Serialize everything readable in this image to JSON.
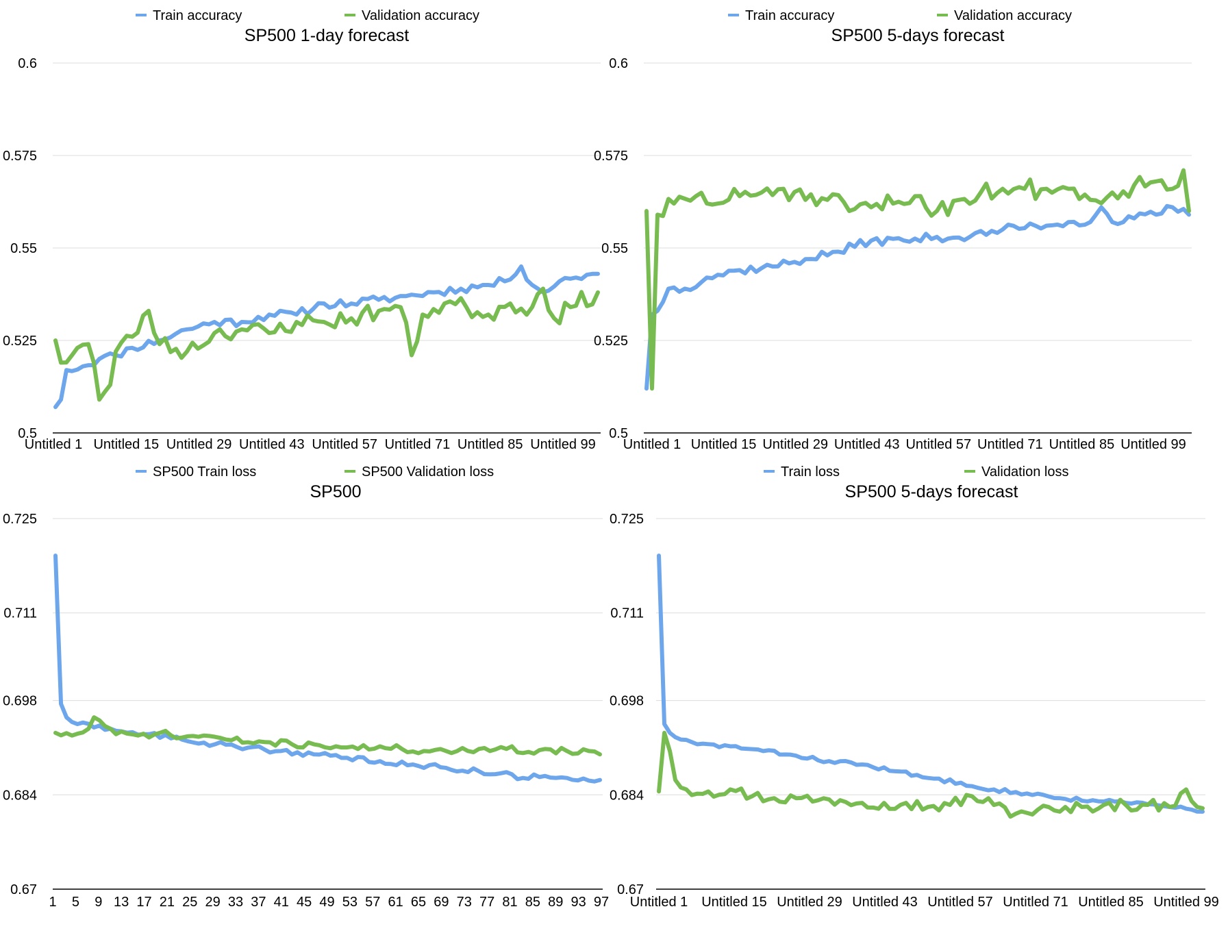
{
  "chart_data": [
    {
      "type": "line",
      "title": "SP500 1-day forecast",
      "legend_position": "top",
      "grid": true,
      "ylim": [
        0.5,
        0.6
      ],
      "yticks": [
        "0.5",
        "0.525",
        "0.55",
        "0.575",
        "0.6"
      ],
      "xtick_labels": [
        "Untitled 1",
        "Untitled 15",
        "Untitled 29",
        "Untitled 43",
        "Untitled 57",
        "Untitled 71",
        "Untitled 85",
        "Untitled 99"
      ],
      "x_count": 100,
      "series": [
        {
          "name": "Train accuracy",
          "color": "#6ea6ec",
          "keypoints": [
            [
              1,
              0.507
            ],
            [
              2,
              0.509
            ],
            [
              3,
              0.517
            ],
            [
              6,
              0.518
            ],
            [
              9,
              0.52
            ],
            [
              12,
              0.521
            ],
            [
              15,
              0.523
            ],
            [
              20,
              0.525
            ],
            [
              25,
              0.528
            ],
            [
              30,
              0.53
            ],
            [
              35,
              0.53
            ],
            [
              40,
              0.532
            ],
            [
              45,
              0.532
            ],
            [
              50,
              0.535
            ],
            [
              55,
              0.535
            ],
            [
              60,
              0.536
            ],
            [
              65,
              0.537
            ],
            [
              70,
              0.538
            ],
            [
              75,
              0.539
            ],
            [
              80,
              0.54
            ],
            [
              83,
              0.541
            ],
            [
              86,
              0.545
            ],
            [
              88,
              0.54
            ],
            [
              90,
              0.538
            ],
            [
              93,
              0.541
            ],
            [
              96,
              0.542
            ],
            [
              99,
              0.543
            ],
            [
              100,
              0.543
            ]
          ],
          "noise": 0.0012,
          "seed": 11
        },
        {
          "name": "Validation accuracy",
          "color": "#78bb50",
          "keypoints": [
            [
              1,
              0.525
            ],
            [
              2,
              0.519
            ],
            [
              5,
              0.523
            ],
            [
              7,
              0.524
            ],
            [
              8,
              0.519
            ],
            [
              9,
              0.509
            ],
            [
              11,
              0.513
            ],
            [
              12,
              0.522
            ],
            [
              15,
              0.526
            ],
            [
              18,
              0.533
            ],
            [
              20,
              0.524
            ],
            [
              25,
              0.522
            ],
            [
              30,
              0.527
            ],
            [
              35,
              0.528
            ],
            [
              40,
              0.527
            ],
            [
              45,
              0.53
            ],
            [
              50,
              0.53
            ],
            [
              55,
              0.531
            ],
            [
              60,
              0.533
            ],
            [
              64,
              0.534
            ],
            [
              66,
              0.521
            ],
            [
              68,
              0.532
            ],
            [
              72,
              0.535
            ],
            [
              76,
              0.534
            ],
            [
              80,
              0.532
            ],
            [
              84,
              0.535
            ],
            [
              88,
              0.534
            ],
            [
              90,
              0.539
            ],
            [
              92,
              0.531
            ],
            [
              95,
              0.534
            ],
            [
              100,
              0.538
            ]
          ],
          "noise": 0.0025,
          "seed": 23
        }
      ]
    },
    {
      "type": "line",
      "title": "SP500 5-days forecast",
      "legend_position": "top",
      "grid": true,
      "ylim": [
        0.5,
        0.6
      ],
      "yticks": [
        "0.5",
        "0.525",
        "0.55",
        "0.575",
        "0.6"
      ],
      "xtick_labels": [
        "Untitled 1",
        "Untitled 15",
        "Untitled 29",
        "Untitled 43",
        "Untitled 57",
        "Untitled 71",
        "Untitled 85",
        "Untitled 99"
      ],
      "x_count": 100,
      "series": [
        {
          "name": "Train accuracy",
          "color": "#6ea6ec",
          "keypoints": [
            [
              1,
              0.512
            ],
            [
              2,
              0.532
            ],
            [
              3,
              0.533
            ],
            [
              5,
              0.539
            ],
            [
              8,
              0.539
            ],
            [
              12,
              0.542
            ],
            [
              18,
              0.544
            ],
            [
              24,
              0.545
            ],
            [
              30,
              0.547
            ],
            [
              36,
              0.549
            ],
            [
              42,
              0.552
            ],
            [
              48,
              0.552
            ],
            [
              54,
              0.553
            ],
            [
              60,
              0.553
            ],
            [
              66,
              0.555
            ],
            [
              72,
              0.556
            ],
            [
              78,
              0.557
            ],
            [
              82,
              0.557
            ],
            [
              84,
              0.561
            ],
            [
              86,
              0.557
            ],
            [
              90,
              0.558
            ],
            [
              94,
              0.559
            ],
            [
              97,
              0.561
            ],
            [
              100,
              0.559
            ]
          ],
          "noise": 0.0012,
          "seed": 37
        },
        {
          "name": "Validation accuracy",
          "color": "#78bb50",
          "keypoints": [
            [
              1,
              0.56
            ],
            [
              2,
              0.512
            ],
            [
              3,
              0.559
            ],
            [
              6,
              0.562
            ],
            [
              10,
              0.564
            ],
            [
              14,
              0.562
            ],
            [
              18,
              0.564
            ],
            [
              22,
              0.565
            ],
            [
              26,
              0.566
            ],
            [
              30,
              0.563
            ],
            [
              34,
              0.563
            ],
            [
              38,
              0.56
            ],
            [
              42,
              0.561
            ],
            [
              46,
              0.562
            ],
            [
              50,
              0.564
            ],
            [
              54,
              0.56
            ],
            [
              58,
              0.563
            ],
            [
              62,
              0.565
            ],
            [
              66,
              0.566
            ],
            [
              70,
              0.566
            ],
            [
              74,
              0.566
            ],
            [
              78,
              0.566
            ],
            [
              82,
              0.563
            ],
            [
              86,
              0.565
            ],
            [
              90,
              0.567
            ],
            [
              94,
              0.568
            ],
            [
              97,
              0.566
            ],
            [
              99,
              0.571
            ],
            [
              100,
              0.56
            ]
          ],
          "noise": 0.0028,
          "seed": 51
        }
      ]
    },
    {
      "type": "line",
      "title": "SP500",
      "legend_position": "top",
      "grid": true,
      "ylim": [
        0.67,
        0.725
      ],
      "yticks": [
        "0.67",
        "0.684",
        "0.698",
        "0.711",
        "0.725"
      ],
      "xtick_labels": [
        "1",
        "5",
        "9",
        "13",
        "17",
        "21",
        "25",
        "29",
        "33",
        "37",
        "41",
        "45",
        "49",
        "53",
        "57",
        "61",
        "65",
        "69",
        "73",
        "77",
        "81",
        "85",
        "89",
        "93",
        "97"
      ],
      "x_count": 100,
      "series": [
        {
          "name": "SP500 Train loss",
          "color": "#6ea6ec",
          "keypoints": [
            [
              1,
              0.7195
            ],
            [
              2,
              0.6975
            ],
            [
              3,
              0.6955
            ],
            [
              5,
              0.6945
            ],
            [
              8,
              0.694
            ],
            [
              12,
              0.6935
            ],
            [
              18,
              0.693
            ],
            [
              24,
              0.6922
            ],
            [
              30,
              0.6915
            ],
            [
              36,
              0.691
            ],
            [
              42,
              0.6905
            ],
            [
              48,
              0.69
            ],
            [
              54,
              0.6895
            ],
            [
              60,
              0.689
            ],
            [
              66,
              0.6885
            ],
            [
              72,
              0.688
            ],
            [
              78,
              0.6875
            ],
            [
              82,
              0.6872
            ],
            [
              86,
              0.6865
            ],
            [
              90,
              0.6868
            ],
            [
              94,
              0.6865
            ],
            [
              100,
              0.6862
            ]
          ],
          "noise": 0.0004,
          "seed": 63
        },
        {
          "name": "SP500 Validation loss",
          "color": "#78bb50",
          "keypoints": [
            [
              1,
              0.6932
            ],
            [
              4,
              0.6928
            ],
            [
              7,
              0.6938
            ],
            [
              8,
              0.6955
            ],
            [
              10,
              0.6942
            ],
            [
              12,
              0.693
            ],
            [
              16,
              0.6928
            ],
            [
              20,
              0.6932
            ],
            [
              24,
              0.6925
            ],
            [
              28,
              0.6928
            ],
            [
              32,
              0.6922
            ],
            [
              36,
              0.6918
            ],
            [
              40,
              0.6918
            ],
            [
              44,
              0.6915
            ],
            [
              48,
              0.6915
            ],
            [
              52,
              0.6912
            ],
            [
              56,
              0.6908
            ],
            [
              60,
              0.6912
            ],
            [
              64,
              0.6908
            ],
            [
              68,
              0.6905
            ],
            [
              72,
              0.6905
            ],
            [
              76,
              0.6905
            ],
            [
              80,
              0.6905
            ],
            [
              84,
              0.6912
            ],
            [
              86,
              0.6902
            ],
            [
              90,
              0.6908
            ],
            [
              94,
              0.6905
            ],
            [
              98,
              0.6905
            ],
            [
              100,
              0.69
            ]
          ],
          "noise": 0.0005,
          "seed": 71
        }
      ]
    },
    {
      "type": "line",
      "title": "SP500 5-days forecast",
      "legend_position": "top",
      "grid": true,
      "ylim": [
        0.67,
        0.725
      ],
      "yticks": [
        "0.67",
        "0.684",
        "0.698",
        "0.711",
        "0.725"
      ],
      "xtick_labels": [
        "Untitled 1",
        "Untitled 15",
        "Untitled 29",
        "Untitled 43",
        "Untitled 57",
        "Untitled 71",
        "Untitled 85",
        "Untitled 99"
      ],
      "x_count": 100,
      "series": [
        {
          "name": "Train loss",
          "color": "#6ea6ec",
          "keypoints": [
            [
              1,
              0.7195
            ],
            [
              2,
              0.6945
            ],
            [
              3,
              0.6932
            ],
            [
              5,
              0.6922
            ],
            [
              8,
              0.6915
            ],
            [
              14,
              0.6912
            ],
            [
              20,
              0.6905
            ],
            [
              26,
              0.6898
            ],
            [
              32,
              0.689
            ],
            [
              38,
              0.6885
            ],
            [
              44,
              0.6875
            ],
            [
              50,
              0.6865
            ],
            [
              56,
              0.6858
            ],
            [
              62,
              0.6848
            ],
            [
              68,
              0.6842
            ],
            [
              74,
              0.6835
            ],
            [
              80,
              0.6832
            ],
            [
              86,
              0.6828
            ],
            [
              90,
              0.6826
            ],
            [
              94,
              0.6822
            ],
            [
              98,
              0.6818
            ],
            [
              100,
              0.6815
            ]
          ],
          "noise": 0.0003,
          "seed": 83
        },
        {
          "name": "Validation loss",
          "color": "#78bb50",
          "keypoints": [
            [
              1,
              0.6845
            ],
            [
              2,
              0.6932
            ],
            [
              3,
              0.6905
            ],
            [
              4,
              0.6862
            ],
            [
              6,
              0.6848
            ],
            [
              10,
              0.6845
            ],
            [
              14,
              0.6848
            ],
            [
              18,
              0.6838
            ],
            [
              22,
              0.6835
            ],
            [
              26,
              0.6835
            ],
            [
              30,
              0.6832
            ],
            [
              34,
              0.6832
            ],
            [
              38,
              0.6828
            ],
            [
              42,
              0.6828
            ],
            [
              46,
              0.6828
            ],
            [
              50,
              0.6822
            ],
            [
              54,
              0.6825
            ],
            [
              58,
              0.6838
            ],
            [
              62,
              0.6825
            ],
            [
              66,
              0.6812
            ],
            [
              70,
              0.6818
            ],
            [
              74,
              0.6815
            ],
            [
              78,
              0.6822
            ],
            [
              82,
              0.6825
            ],
            [
              86,
              0.6825
            ],
            [
              90,
              0.6825
            ],
            [
              94,
              0.6822
            ],
            [
              96,
              0.6842
            ],
            [
              97,
              0.6848
            ],
            [
              99,
              0.6822
            ],
            [
              100,
              0.682
            ]
          ],
          "noise": 0.0009,
          "seed": 97
        }
      ]
    }
  ]
}
